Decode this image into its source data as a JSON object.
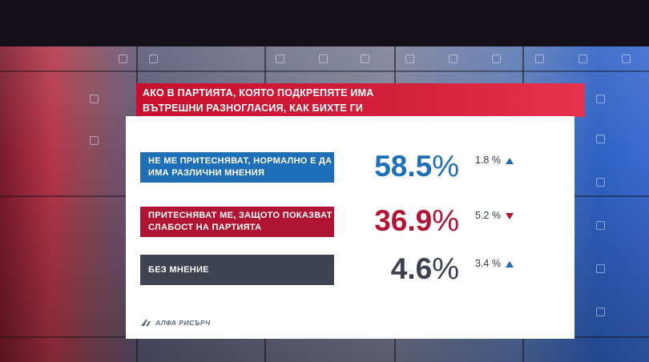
{
  "title": "АКО В ПАРТИЯТА, КОЯТО ПОДКРЕПЯТЕ ИМА ВЪТРЕШНИ РАЗНОГЛАСИЯ, КАК БИХТЕ ГИ ВЪЗПРИЕЛИ:",
  "source": "АЛФА РИСЪРЧ",
  "colors": {
    "blue": "#1f6fb8",
    "red": "#b01633",
    "gray": "#3d4150",
    "title_red": "#c8102e"
  },
  "chart_data": {
    "type": "bar",
    "title": "АКО В ПАРТИЯТА, КОЯТО ПОДКРЕПЯТЕ ИМА ВЪТРЕШНИ РАЗНОГЛАСИЯ, КАК БИХТЕ ГИ ВЪЗПРИЕЛИ:",
    "rows": [
      {
        "label": "НЕ МЕ ПРИТЕСНЯВАТ, НОРМАЛНО Е ДА ИМА РАЗЛИЧНИ МНЕНИЯ",
        "value": "58.5",
        "unit": "%",
        "change": "1.8",
        "change_unit": "%",
        "direction": "up",
        "color": "#1f6fb8"
      },
      {
        "label": "ПРИТЕСНЯВАТ МЕ, ЗАЩОТО ПОКАЗВАТ СЛАБОСТ НА ПАРТИЯТА",
        "value": "36.9",
        "unit": "%",
        "change": "5.2",
        "change_unit": "%",
        "direction": "down",
        "color": "#b01633"
      },
      {
        "label": "БЕЗ МНЕНИЕ",
        "value": "4.6",
        "unit": "%",
        "change": "3.4",
        "change_unit": "%",
        "direction": "up",
        "color": "#3d4150"
      }
    ]
  }
}
